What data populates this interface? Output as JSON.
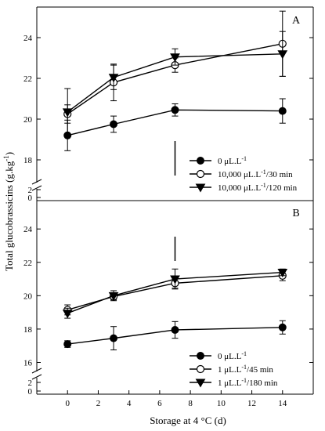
{
  "y_axis_title": "Total glucobrassicins (g.kg",
  "y_axis_title_sup": "-1",
  "y_axis_title_end": ")",
  "x_axis_title": "Storage at 4 °C (d)",
  "chart_data": [
    {
      "type": "line",
      "panel": "A",
      "x": [
        0,
        3,
        7,
        14
      ],
      "ylim": [
        17,
        25.5
      ],
      "yticks": [
        18,
        20,
        22,
        24
      ],
      "broken_axis_ticks": [
        0,
        2
      ],
      "series": [
        {
          "name": "0 μL.L",
          "name_sup": "-1",
          "marker": "filled-circle",
          "y": [
            19.2,
            19.75,
            20.45,
            20.4
          ],
          "err": [
            0.75,
            0.4,
            0.3,
            0.6
          ]
        },
        {
          "name": "10,000 μL.L",
          "name_sup": "-1",
          "name_suffix": "/30 min",
          "marker": "open-circle",
          "y": [
            20.25,
            21.8,
            22.65,
            23.7
          ],
          "err": [
            0.45,
            0.9,
            0.35,
            1.6
          ]
        },
        {
          "name": "10,000 μL.L",
          "name_sup": "-1",
          "name_suffix": "/120 min",
          "marker": "filled-triangle-down",
          "y": [
            20.35,
            22.05,
            23.05,
            23.2
          ],
          "err": [
            1.15,
            0.6,
            0.4,
            1.1
          ]
        }
      ],
      "annotation": "vertical line at day 7"
    },
    {
      "type": "line",
      "panel": "B",
      "x": [
        0,
        3,
        7,
        14
      ],
      "ylim": [
        15.6,
        25.7
      ],
      "yticks": [
        16,
        18,
        20,
        22,
        24
      ],
      "broken_axis_ticks": [
        0,
        2
      ],
      "series": [
        {
          "name": "0 μL.L",
          "name_sup": "-1",
          "marker": "filled-circle",
          "y": [
            17.1,
            17.45,
            17.95,
            18.1
          ],
          "err": [
            0.2,
            0.7,
            0.5,
            0.4
          ]
        },
        {
          "name": "1 μL.L",
          "name_sup": "-1",
          "name_suffix": "/45 min",
          "marker": "open-circle",
          "y": [
            19.15,
            19.95,
            20.75,
            21.2
          ],
          "err": [
            0.3,
            0.2,
            0.3,
            0.3
          ]
        },
        {
          "name": "1 μL.L",
          "name_sup": "-1",
          "name_suffix": "/180 min",
          "marker": "filled-triangle-down",
          "y": [
            18.95,
            20.0,
            21.0,
            21.4
          ],
          "err": [
            0.3,
            0.3,
            0.6,
            0.2
          ]
        }
      ],
      "annotation": "vertical line at day 7"
    }
  ],
  "xticks": [
    0,
    2,
    4,
    6,
    8,
    10,
    12,
    14
  ]
}
